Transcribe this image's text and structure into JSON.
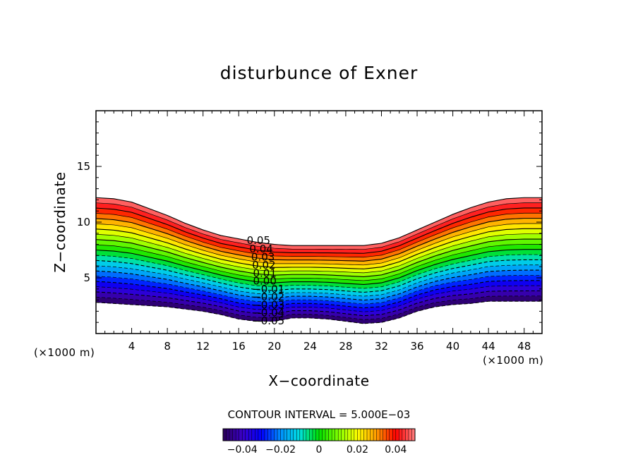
{
  "chart_data": {
    "type": "contour",
    "title": "disturbunce of Exner",
    "xlabel": "X−coordinate",
    "ylabel": "Z−coordinate",
    "x_unit": "(×1000 m)",
    "xlim": [
      0,
      50
    ],
    "ylim": [
      0,
      20
    ],
    "x_ticks": [
      4,
      8,
      12,
      16,
      20,
      24,
      28,
      32,
      36,
      40,
      44,
      48
    ],
    "x_tick_labels": [
      "4",
      "8",
      "12",
      "16",
      "20",
      "24",
      "28",
      "32",
      "36",
      "40",
      "44",
      "48"
    ],
    "y_ticks": [
      5,
      10,
      15
    ],
    "y_tick_labels": [
      "5",
      "10",
      "15"
    ],
    "contour_interval_text": "CONTOUR INTERVAL = 5.000E−03",
    "contour_interval": 0.005,
    "level_range": [
      -0.05,
      0.05
    ],
    "negative_contours": "dashed",
    "contour_labels": [
      {
        "text": "0.05",
        "x": 16.9
      },
      {
        "text": "0.04",
        "x": 17.2
      },
      {
        "text": "0.03",
        "x": 17.4
      },
      {
        "text": "0.02",
        "x": 17.5
      },
      {
        "text": "0.01",
        "x": 17.6
      },
      {
        "text": "0.00",
        "x": 17.6
      },
      {
        "text": "−0.01",
        "x": 17.5
      },
      {
        "text": "−0.02",
        "x": 17.5
      },
      {
        "text": "−0.03",
        "x": 17.5
      },
      {
        "text": "−0.04",
        "x": 17.5
      },
      {
        "text": "−0.05",
        "x": 17.5
      }
    ],
    "field_top_profile": {
      "x": [
        0,
        2,
        4,
        6,
        8,
        10,
        12,
        14,
        16,
        18,
        20,
        22,
        24,
        26,
        28,
        30,
        32,
        34,
        36,
        38,
        40,
        42,
        44,
        46,
        48,
        50
      ],
      "z": [
        12.2,
        12.1,
        11.8,
        11.2,
        10.6,
        9.9,
        9.3,
        8.8,
        8.5,
        8.2,
        8.0,
        7.9,
        7.9,
        7.9,
        7.9,
        7.9,
        8.1,
        8.6,
        9.3,
        10.0,
        10.7,
        11.3,
        11.8,
        12.1,
        12.2,
        12.2
      ]
    },
    "field_bottom_profile": {
      "x": [
        0,
        2,
        4,
        6,
        8,
        10,
        12,
        14,
        16,
        18,
        20,
        22,
        24,
        26,
        28,
        30,
        32,
        34,
        36,
        38,
        40,
        42,
        44,
        46,
        48,
        50
      ],
      "z": [
        2.8,
        2.7,
        2.6,
        2.5,
        2.4,
        2.2,
        2.0,
        1.7,
        1.3,
        1.1,
        1.1,
        1.4,
        1.4,
        1.3,
        1.1,
        0.9,
        1.0,
        1.4,
        2.0,
        2.4,
        2.6,
        2.7,
        2.9,
        2.9,
        2.9,
        2.9
      ]
    },
    "colorbar": {
      "range": [
        -0.05,
        0.05
      ],
      "tick_values": [
        -0.04,
        -0.02,
        0,
        0.02,
        0.04
      ],
      "tick_labels": [
        "−0.04",
        "−0.02",
        "0",
        "0.02",
        "0.04"
      ],
      "colormap": [
        "#2a0058",
        "#3a00c8",
        "#0000ff",
        "#0090ff",
        "#00e0e0",
        "#00e000",
        "#80ff00",
        "#ffff00",
        "#ff9a00",
        "#ff0000",
        "#ff8080"
      ]
    }
  }
}
